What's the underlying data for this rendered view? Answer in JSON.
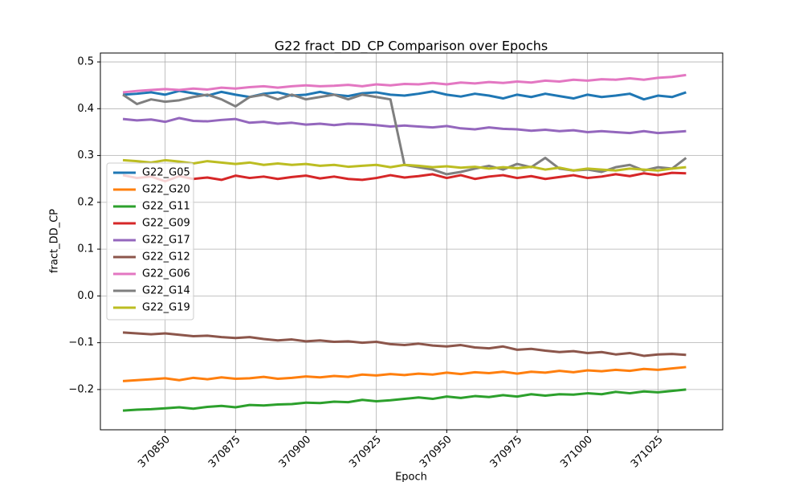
{
  "chart_data": {
    "type": "line",
    "title": "G22 fract_DD_CP Comparison over Epochs",
    "x_label": "Epoch",
    "y_label": "fract_DD_CP",
    "x": [
      370835,
      370840,
      370845,
      370850,
      370855,
      370860,
      370865,
      370870,
      370875,
      370880,
      370885,
      370890,
      370895,
      370900,
      370905,
      370910,
      370915,
      370920,
      370925,
      370930,
      370935,
      370940,
      370945,
      370950,
      370955,
      370960,
      370965,
      370970,
      370975,
      370980,
      370985,
      370990,
      370995,
      371000,
      371005,
      371010,
      371015,
      371020,
      371025,
      371030,
      371035
    ],
    "series": [
      {
        "name": "G22_G05",
        "color": "#1f77b4",
        "values": [
          0.43,
          0.432,
          0.435,
          0.43,
          0.438,
          0.433,
          0.428,
          0.436,
          0.43,
          0.425,
          0.432,
          0.435,
          0.428,
          0.43,
          0.436,
          0.43,
          0.427,
          0.433,
          0.435,
          0.43,
          0.428,
          0.432,
          0.437,
          0.43,
          0.426,
          0.432,
          0.428,
          0.422,
          0.43,
          0.425,
          0.432,
          0.427,
          0.422,
          0.43,
          0.425,
          0.428,
          0.432,
          0.42,
          0.428,
          0.425,
          0.435
        ]
      },
      {
        "name": "G22_G20",
        "color": "#ff7f0e",
        "values": [
          -0.182,
          -0.18,
          -0.178,
          -0.176,
          -0.18,
          -0.175,
          -0.178,
          -0.174,
          -0.177,
          -0.176,
          -0.173,
          -0.177,
          -0.175,
          -0.172,
          -0.174,
          -0.171,
          -0.173,
          -0.168,
          -0.17,
          -0.167,
          -0.169,
          -0.166,
          -0.168,
          -0.164,
          -0.167,
          -0.163,
          -0.165,
          -0.162,
          -0.166,
          -0.162,
          -0.164,
          -0.16,
          -0.163,
          -0.159,
          -0.161,
          -0.158,
          -0.16,
          -0.156,
          -0.158,
          -0.155,
          -0.152
        ]
      },
      {
        "name": "G22_G11",
        "color": "#2ca02c",
        "values": [
          -0.245,
          -0.243,
          -0.242,
          -0.24,
          -0.238,
          -0.241,
          -0.237,
          -0.235,
          -0.238,
          -0.233,
          -0.234,
          -0.232,
          -0.231,
          -0.228,
          -0.229,
          -0.226,
          -0.227,
          -0.222,
          -0.225,
          -0.223,
          -0.22,
          -0.217,
          -0.22,
          -0.215,
          -0.218,
          -0.214,
          -0.216,
          -0.212,
          -0.215,
          -0.21,
          -0.213,
          -0.21,
          -0.211,
          -0.208,
          -0.21,
          -0.205,
          -0.208,
          -0.204,
          -0.206,
          -0.203,
          -0.2
        ]
      },
      {
        "name": "G22_G09",
        "color": "#d62728",
        "values": [
          0.258,
          0.252,
          0.255,
          0.245,
          0.256,
          0.25,
          0.253,
          0.248,
          0.257,
          0.252,
          0.255,
          0.25,
          0.254,
          0.257,
          0.251,
          0.255,
          0.25,
          0.248,
          0.252,
          0.258,
          0.253,
          0.256,
          0.26,
          0.252,
          0.258,
          0.25,
          0.255,
          0.258,
          0.252,
          0.256,
          0.25,
          0.254,
          0.258,
          0.252,
          0.255,
          0.26,
          0.256,
          0.262,
          0.258,
          0.263,
          0.262
        ]
      },
      {
        "name": "G22_G17",
        "color": "#9467bd",
        "values": [
          0.378,
          0.375,
          0.377,
          0.372,
          0.38,
          0.374,
          0.373,
          0.376,
          0.378,
          0.37,
          0.372,
          0.368,
          0.37,
          0.366,
          0.368,
          0.365,
          0.368,
          0.367,
          0.365,
          0.362,
          0.364,
          0.362,
          0.36,
          0.363,
          0.358,
          0.356,
          0.36,
          0.357,
          0.356,
          0.353,
          0.355,
          0.352,
          0.354,
          0.35,
          0.352,
          0.35,
          0.348,
          0.352,
          0.348,
          0.35,
          0.352
        ]
      },
      {
        "name": "G22_G12",
        "color": "#8c564b",
        "values": [
          -0.078,
          -0.08,
          -0.082,
          -0.08,
          -0.083,
          -0.086,
          -0.085,
          -0.088,
          -0.09,
          -0.088,
          -0.092,
          -0.095,
          -0.093,
          -0.097,
          -0.095,
          -0.098,
          -0.097,
          -0.1,
          -0.098,
          -0.103,
          -0.105,
          -0.102,
          -0.106,
          -0.108,
          -0.105,
          -0.11,
          -0.112,
          -0.108,
          -0.115,
          -0.113,
          -0.117,
          -0.12,
          -0.118,
          -0.122,
          -0.12,
          -0.125,
          -0.122,
          -0.128,
          -0.125,
          -0.124,
          -0.126
        ]
      },
      {
        "name": "G22_G06",
        "color": "#e377c2",
        "values": [
          0.435,
          0.438,
          0.44,
          0.442,
          0.44,
          0.443,
          0.441,
          0.445,
          0.443,
          0.446,
          0.448,
          0.445,
          0.448,
          0.45,
          0.448,
          0.449,
          0.451,
          0.448,
          0.452,
          0.45,
          0.453,
          0.452,
          0.455,
          0.452,
          0.456,
          0.454,
          0.457,
          0.455,
          0.458,
          0.456,
          0.46,
          0.458,
          0.462,
          0.46,
          0.463,
          0.462,
          0.465,
          0.462,
          0.466,
          0.468,
          0.472
        ]
      },
      {
        "name": "G22_G14",
        "color": "#7f7f7f",
        "values": [
          0.43,
          0.41,
          0.42,
          0.415,
          0.418,
          0.425,
          0.43,
          0.42,
          0.405,
          0.425,
          0.43,
          0.42,
          0.43,
          0.42,
          0.425,
          0.43,
          0.42,
          0.43,
          0.425,
          0.42,
          0.28,
          0.275,
          0.27,
          0.26,
          0.265,
          0.272,
          0.278,
          0.27,
          0.282,
          0.275,
          0.295,
          0.272,
          0.268,
          0.27,
          0.265,
          0.275,
          0.28,
          0.268,
          0.275,
          0.272,
          0.295
        ]
      },
      {
        "name": "G22_G19",
        "color": "#bcbd22",
        "values": [
          0.29,
          0.288,
          0.285,
          0.29,
          0.287,
          0.283,
          0.288,
          0.285,
          0.282,
          0.285,
          0.28,
          0.283,
          0.28,
          0.282,
          0.278,
          0.28,
          0.276,
          0.278,
          0.28,
          0.275,
          0.28,
          0.278,
          0.275,
          0.277,
          0.274,
          0.276,
          0.272,
          0.275,
          0.273,
          0.276,
          0.27,
          0.274,
          0.268,
          0.272,
          0.27,
          0.268,
          0.272,
          0.27,
          0.268,
          0.272,
          0.275
        ]
      }
    ],
    "xlim": [
      370827,
      371048
    ],
    "ylim": [
      -0.286,
      0.519
    ],
    "xticks": [
      370850,
      370875,
      370900,
      370925,
      370950,
      370975,
      371000,
      371025
    ],
    "yticks": [
      {
        "value": -0.2,
        "label": "−0.2"
      },
      {
        "value": -0.1,
        "label": "−0.1"
      },
      {
        "value": 0,
        "label": "0.0"
      },
      0.1,
      0.2,
      0.3,
      0.4,
      0.5
    ],
    "grid": true,
    "legend": "center left"
  }
}
